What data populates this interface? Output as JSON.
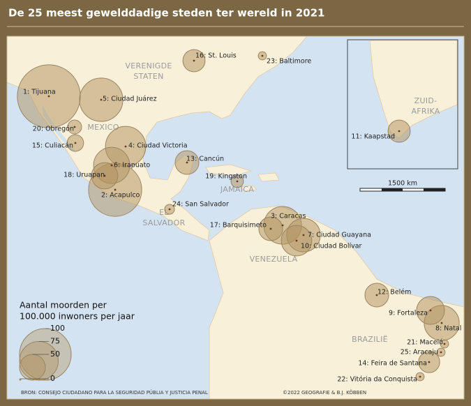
{
  "title": "De 25 meest gewelddadige steden ter wereld in 2021",
  "countries": [
    {
      "lines": [
        "VERENIGDE",
        "STATEN"
      ]
    },
    {
      "lines": [
        "MEXICO"
      ]
    },
    {
      "lines": [
        "JAMAICA"
      ]
    },
    {
      "lines": [
        "EL",
        "SALVADOR"
      ]
    },
    {
      "lines": [
        "VENEZUELA"
      ]
    },
    {
      "lines": [
        "BRAZILIË"
      ]
    },
    {
      "lines": [
        "ZUID-",
        "AFRIKA"
      ]
    }
  ],
  "cities": [
    {
      "label": "1: Tijuana",
      "rate": 122
    },
    {
      "label": "2: Acapulco",
      "rate": 103
    },
    {
      "label": "3: Caracas",
      "rate": 73
    },
    {
      "label": "4: Ciudad Victoria",
      "rate": 78
    },
    {
      "label": "5: Ciudad Juárez",
      "rate": 84
    },
    {
      "label": "6: Irapuato",
      "rate": 70
    },
    {
      "label": "7: Ciudad Guayana",
      "rate": 65
    },
    {
      "label": "8: Natal",
      "rate": 68
    },
    {
      "label": "9: Fortaleza",
      "rate": 54
    },
    {
      "label": "10: Ciudad Bolívar",
      "rate": 59
    },
    {
      "label": "11: Kaapstad",
      "rate": 43
    },
    {
      "label": "12: Belém",
      "rate": 46
    },
    {
      "label": "13: Cancún",
      "rate": 46
    },
    {
      "label": "14: Feira de Santana",
      "rate": 41
    },
    {
      "label": "15: Culiacán",
      "rate": 32
    },
    {
      "label": "16: St. Louis",
      "rate": 43
    },
    {
      "label": "17: Barquisimeto",
      "rate": 46
    },
    {
      "label": "18: Uruapan",
      "rate": 51
    },
    {
      "label": "19: Kingston",
      "rate": 24
    },
    {
      "label": "20: Obregón",
      "rate": 27
    },
    {
      "label": "21: Maceió",
      "rate": 16
    },
    {
      "label": "22: Vitória da Conquista",
      "rate": 16
    },
    {
      "label": "23: Baltimore",
      "rate": 16
    },
    {
      "label": "24: San Salvador",
      "rate": 19
    },
    {
      "label": "25: Aracaju",
      "rate": 16
    }
  ],
  "legend": {
    "title": [
      "Aantal moorden per",
      "100.000 inwoners per jaar"
    ],
    "ticks": [
      100,
      75,
      50,
      0
    ]
  },
  "scale_bar": "1500 km",
  "source": "BRON: CONSEJO CIUDADANO PARA LA SEGURIDAD PÚBLIA Y JUSTICIA PENAL",
  "credit": "©2022  GEOGRAFIE & B.J. KÖBBEN"
}
